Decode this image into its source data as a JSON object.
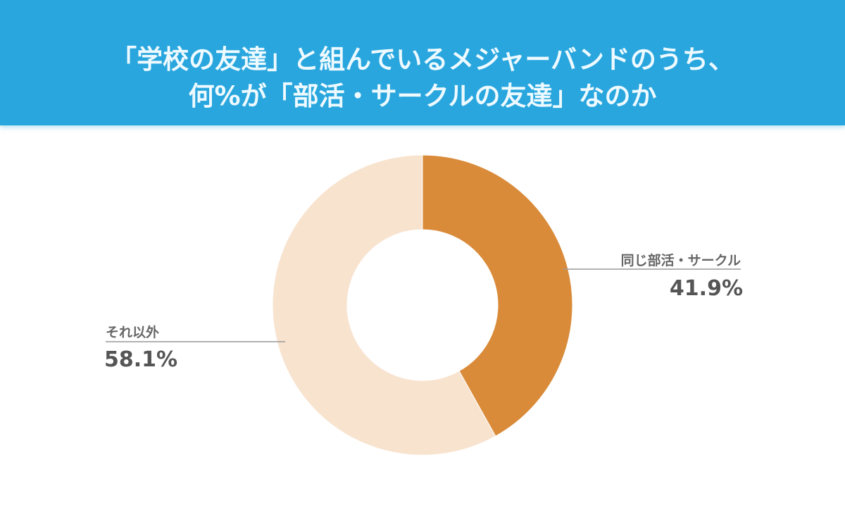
{
  "header": {
    "title_line1": "「学校の友達」と組んでいるメジャーバンドのうち、",
    "title_line2": "何%が「部活・サークルの友達」なのか",
    "background_color": "#29a6de"
  },
  "chart_data": {
    "type": "pie",
    "variant": "donut",
    "title": "「学校の友達」と組んでいるメジャーバンドのうち、何%が「部活・サークルの友達」なのか",
    "categories": [
      "同じ部活・サークル",
      "それ以外"
    ],
    "values": [
      41.9,
      58.1
    ],
    "value_labels": [
      "41.9%",
      "58.1%"
    ],
    "colors": [
      "#d98b3a",
      "#f8e3cf"
    ],
    "start_angle": "top",
    "direction": "clockwise",
    "legend": "none (leader-line labels)"
  }
}
